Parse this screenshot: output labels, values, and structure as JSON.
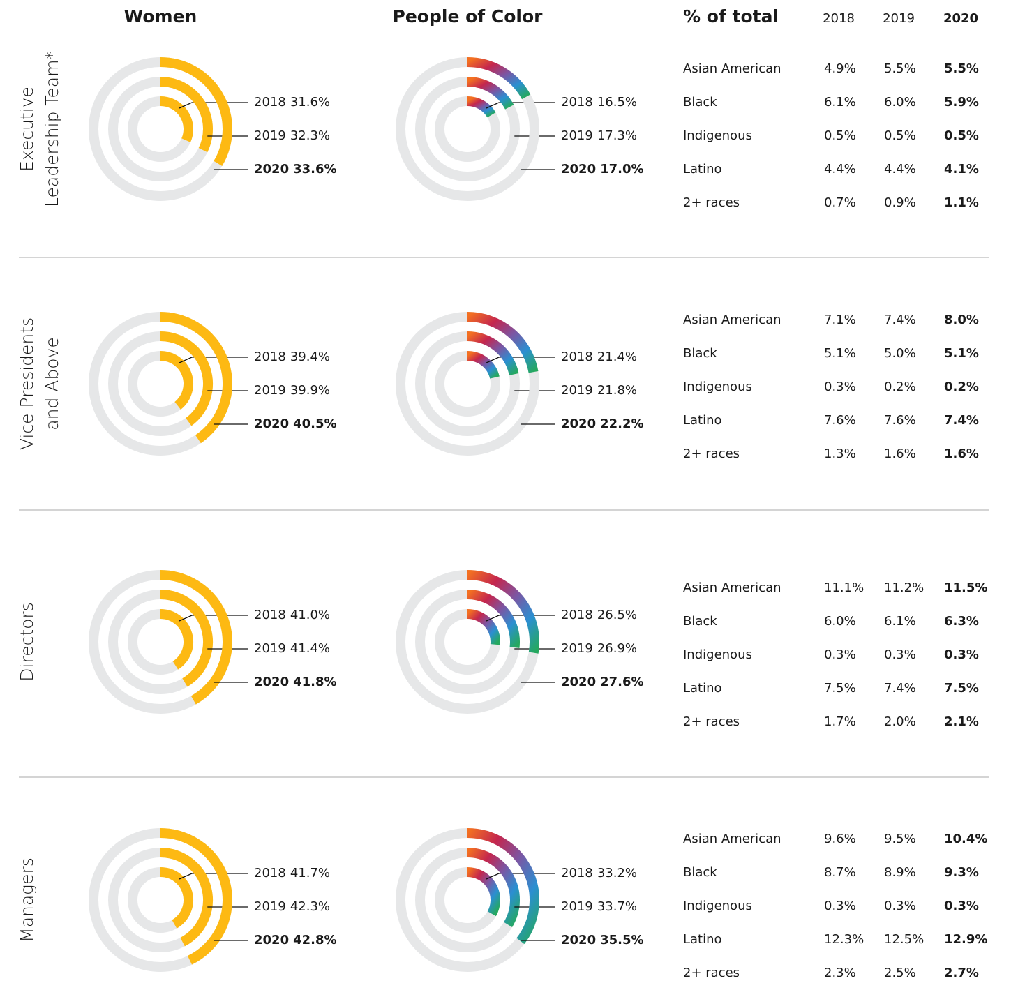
{
  "column_titles": [
    "Women",
    "People of Color"
  ],
  "row_titles": [
    [
      "Executive",
      "Leadership Team*"
    ],
    [
      "Vice Presidents",
      "and Above"
    ],
    [
      "Directors"
    ],
    [
      "Managers"
    ]
  ],
  "chart_data": [
    {
      "type": "radial_bar",
      "categories": [
        "2018",
        "2019",
        "2020"
      ],
      "values": [
        31.6,
        32.3,
        33.6
      ],
      "value_labels": [
        "31.6%",
        "32.3%",
        "33.6%"
      ],
      "color": "#fdb913",
      "ylim": [
        0,
        100
      ]
    },
    {
      "type": "radial_bar",
      "categories": [
        "2018",
        "2019",
        "2020"
      ],
      "values": [
        16.5,
        17.3,
        17.0
      ],
      "value_labels": [
        "16.5%",
        "17.3%",
        "17.0%"
      ],
      "colors": [
        "#f37021",
        "#c4264e",
        "#7b56a3",
        "#2b8fd1",
        "#25a85e"
      ],
      "ylim": [
        0,
        100
      ]
    },
    {
      "type": "radial_bar",
      "categories": [
        "2018",
        "2019",
        "2020"
      ],
      "values": [
        39.4,
        39.9,
        40.5
      ],
      "value_labels": [
        "39.4%",
        "39.9%",
        "40.5%"
      ],
      "color": "#fdb913",
      "ylim": [
        0,
        100
      ]
    },
    {
      "type": "radial_bar",
      "categories": [
        "2018",
        "2019",
        "2020"
      ],
      "values": [
        21.4,
        21.8,
        22.2
      ],
      "value_labels": [
        "21.4%",
        "21.8%",
        "22.2%"
      ],
      "colors": [
        "#f37021",
        "#c4264e",
        "#7b56a3",
        "#2b8fd1",
        "#25a85e"
      ],
      "ylim": [
        0,
        100
      ]
    },
    {
      "type": "radial_bar",
      "categories": [
        "2018",
        "2019",
        "2020"
      ],
      "values": [
        41.0,
        41.4,
        41.8
      ],
      "value_labels": [
        "41.0%",
        "41.4%",
        "41.8%"
      ],
      "color": "#fdb913",
      "ylim": [
        0,
        100
      ]
    },
    {
      "type": "radial_bar",
      "categories": [
        "2018",
        "2019",
        "2020"
      ],
      "values": [
        26.5,
        26.9,
        27.6
      ],
      "value_labels": [
        "26.5%",
        "26.9%",
        "27.6%"
      ],
      "colors": [
        "#f37021",
        "#c4264e",
        "#7b56a3",
        "#2b8fd1",
        "#25a85e"
      ],
      "ylim": [
        0,
        100
      ]
    },
    {
      "type": "radial_bar",
      "categories": [
        "2018",
        "2019",
        "2020"
      ],
      "values": [
        41.7,
        42.3,
        42.8
      ],
      "value_labels": [
        "41.7%",
        "42.3%",
        "42.8%"
      ],
      "color": "#fdb913",
      "ylim": [
        0,
        100
      ]
    },
    {
      "type": "radial_bar",
      "categories": [
        "2018",
        "2019",
        "2020"
      ],
      "values": [
        33.2,
        33.7,
        35.5
      ],
      "value_labels": [
        "33.2%",
        "33.7%",
        "35.5%"
      ],
      "colors": [
        "#f37021",
        "#c4264e",
        "#7b56a3",
        "#2b8fd1",
        "#25a85e"
      ],
      "ylim": [
        0,
        100
      ]
    }
  ],
  "table": {
    "title": "% of total",
    "columns": [
      "2018",
      "2019",
      "2020"
    ],
    "sections": [
      {
        "rows": [
          {
            "label": "Asian American",
            "cells": [
              "4.9%",
              "5.5%",
              "5.5%"
            ]
          },
          {
            "label": "Black",
            "cells": [
              "6.1%",
              "6.0%",
              "5.9%"
            ]
          },
          {
            "label": "Indigenous",
            "cells": [
              "0.5%",
              "0.5%",
              "0.5%"
            ]
          },
          {
            "label": "Latino",
            "cells": [
              "4.4%",
              "4.4%",
              "4.1%"
            ]
          },
          {
            "label": "2+ races",
            "cells": [
              "0.7%",
              "0.9%",
              "1.1%"
            ]
          }
        ]
      },
      {
        "rows": [
          {
            "label": "Asian American",
            "cells": [
              "7.1%",
              "7.4%",
              "8.0%"
            ]
          },
          {
            "label": "Black",
            "cells": [
              "5.1%",
              "5.0%",
              "5.1%"
            ]
          },
          {
            "label": "Indigenous",
            "cells": [
              "0.3%",
              "0.2%",
              "0.2%"
            ]
          },
          {
            "label": "Latino",
            "cells": [
              "7.6%",
              "7.6%",
              "7.4%"
            ]
          },
          {
            "label": "2+ races",
            "cells": [
              "1.3%",
              "1.6%",
              "1.6%"
            ]
          }
        ]
      },
      {
        "rows": [
          {
            "label": "Asian American",
            "cells": [
              "11.1%",
              "11.2%",
              "11.5%"
            ]
          },
          {
            "label": "Black",
            "cells": [
              "6.0%",
              "6.1%",
              "6.3%"
            ]
          },
          {
            "label": "Indigenous",
            "cells": [
              "0.3%",
              "0.3%",
              "0.3%"
            ]
          },
          {
            "label": "Latino",
            "cells": [
              "7.5%",
              "7.4%",
              "7.5%"
            ]
          },
          {
            "label": "2+ races",
            "cells": [
              "1.7%",
              "2.0%",
              "2.1%"
            ]
          }
        ]
      },
      {
        "rows": [
          {
            "label": "Asian American",
            "cells": [
              "9.6%",
              "9.5%",
              "10.4%"
            ]
          },
          {
            "label": "Black",
            "cells": [
              "8.7%",
              "8.9%",
              "9.3%"
            ]
          },
          {
            "label": "Indigenous",
            "cells": [
              "0.3%",
              "0.3%",
              "0.3%"
            ]
          },
          {
            "label": "Latino",
            "cells": [
              "12.3%",
              "12.5%",
              "12.9%"
            ]
          },
          {
            "label": "2+ races",
            "cells": [
              "2.3%",
              "2.5%",
              "2.7%"
            ]
          }
        ]
      }
    ]
  }
}
